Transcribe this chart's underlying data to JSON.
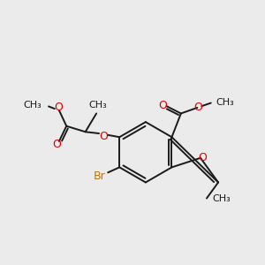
{
  "bg_color": "#ebebeb",
  "bond_color": "#1a1a1a",
  "o_color": "#dd0000",
  "br_color": "#bb7700",
  "lw": 1.4,
  "font_size": 9.0,
  "small_font": 8.0,
  "xlim": [
    0,
    10
  ],
  "ylim": [
    0,
    10
  ]
}
